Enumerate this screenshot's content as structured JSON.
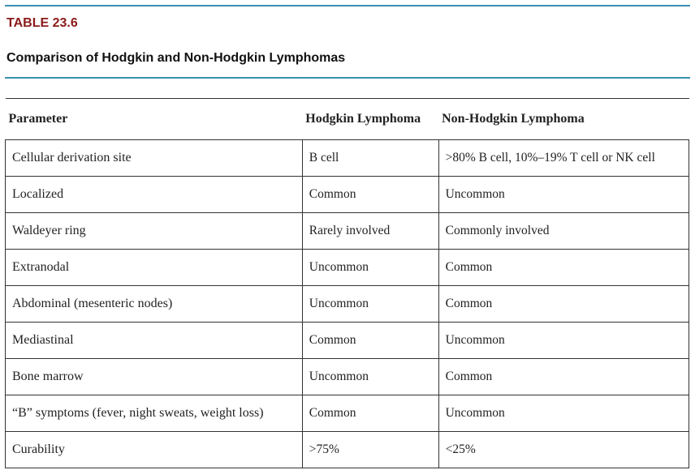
{
  "header": {
    "label": "TABLE 23.6",
    "title": "Comparison of Hodgkin and Non-Hodgkin Lymphomas"
  },
  "table": {
    "columns": [
      "Parameter",
      "Hodgkin Lymphoma",
      "Non-Hodgkin Lymphoma"
    ],
    "rows": [
      [
        "Cellular derivation site",
        "B cell",
        ">80% B cell, 10%–19% T cell or NK cell"
      ],
      [
        "Localized",
        "Common",
        "Uncommon"
      ],
      [
        "Waldeyer ring",
        "Rarely involved",
        "Commonly involved"
      ],
      [
        "Extranodal",
        "Uncommon",
        "Common"
      ],
      [
        "Abdominal (mesenteric nodes)",
        "Uncommon",
        "Common"
      ],
      [
        "Mediastinal",
        "Common",
        "Uncommon"
      ],
      [
        "Bone marrow",
        "Uncommon",
        "Common"
      ],
      [
        "“B” symptoms (fever, night sweats, weight loss)",
        "Common",
        "Uncommon"
      ],
      [
        "Curability",
        ">75%",
        "<25%"
      ]
    ]
  }
}
